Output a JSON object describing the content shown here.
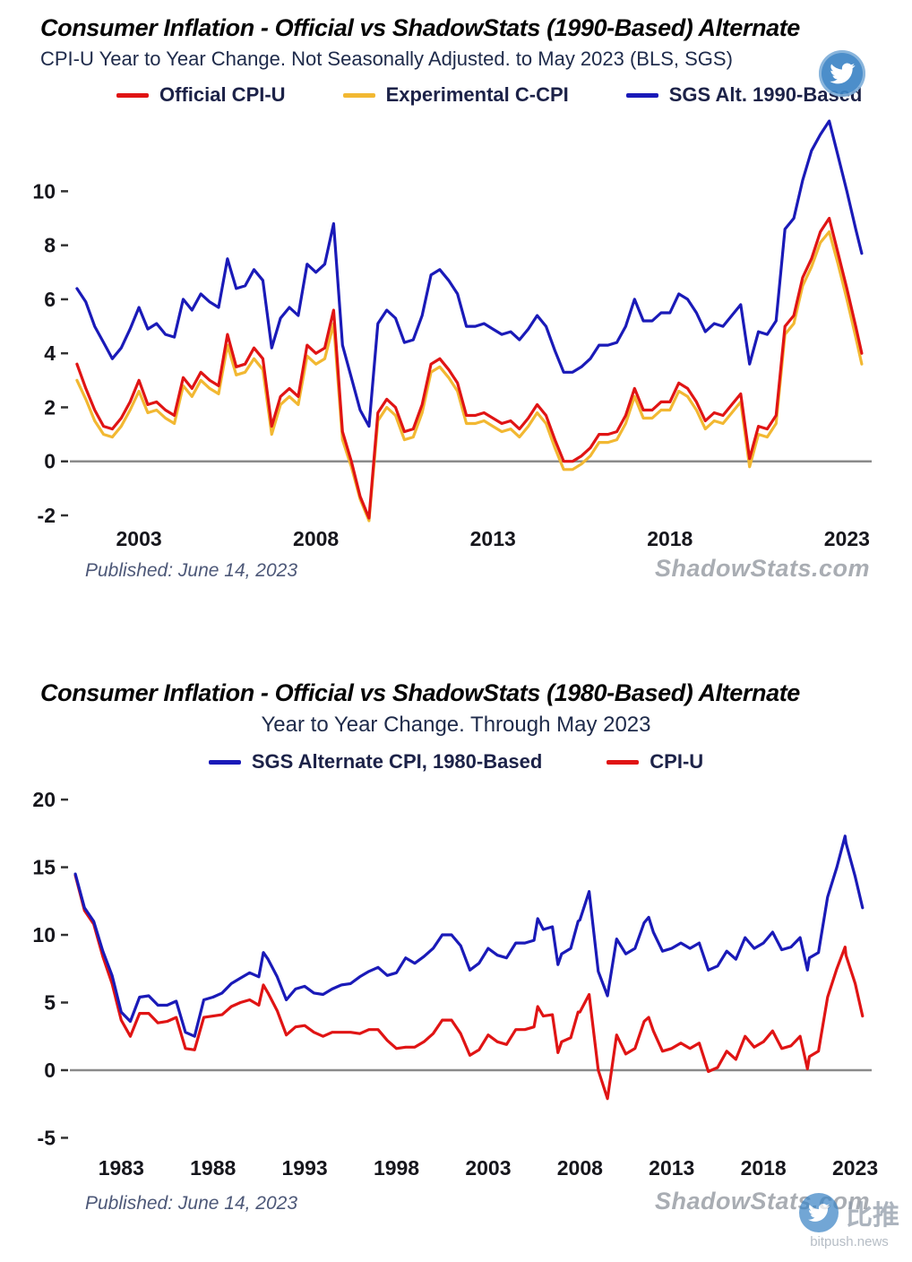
{
  "page": {
    "bitpush": {
      "name": "比推",
      "domain": "bitpush.news"
    }
  },
  "chart_data": [
    {
      "type": "line",
      "title": "Consumer Inflation - Official vs ShadowStats (1990-Based) Alternate",
      "subtitle": "CPI-U Year to Year Change. Not Seasonally Adjusted. to May 2023  (BLS, SGS)",
      "published": "Published: June 14, 2023",
      "watermark": "ShadowStats.com",
      "xlabel": "",
      "ylabel": "",
      "grid": false,
      "legend_position": "top",
      "xlim": [
        2001.1,
        2023.7
      ],
      "ylim": [
        -2,
        12.8
      ],
      "yticks": [
        -2,
        0,
        2,
        4,
        6,
        8,
        10
      ],
      "xticks": [
        2003,
        2008,
        2013,
        2018,
        2023
      ],
      "x": [
        2001.25,
        2001.5,
        2001.75,
        2002,
        2002.25,
        2002.5,
        2002.75,
        2003,
        2003.25,
        2003.5,
        2003.75,
        2004,
        2004.25,
        2004.5,
        2004.75,
        2005,
        2005.25,
        2005.5,
        2005.75,
        2006,
        2006.25,
        2006.5,
        2006.75,
        2007,
        2007.25,
        2007.5,
        2007.75,
        2008,
        2008.25,
        2008.5,
        2008.75,
        2009,
        2009.25,
        2009.5,
        2009.75,
        2010,
        2010.25,
        2010.5,
        2010.75,
        2011,
        2011.25,
        2011.5,
        2011.75,
        2012,
        2012.25,
        2012.5,
        2012.75,
        2013,
        2013.25,
        2013.5,
        2013.75,
        2014,
        2014.25,
        2014.5,
        2014.75,
        2015,
        2015.25,
        2015.5,
        2015.75,
        2016,
        2016.25,
        2016.5,
        2016.75,
        2017,
        2017.25,
        2017.5,
        2017.75,
        2018,
        2018.25,
        2018.5,
        2018.75,
        2019,
        2019.25,
        2019.5,
        2019.75,
        2020,
        2020.25,
        2020.5,
        2020.75,
        2021,
        2021.25,
        2021.5,
        2021.75,
        2022,
        2022.25,
        2022.5,
        2022.75,
        2023,
        2023.25,
        2023.42
      ],
      "series": [
        {
          "name": "Experimental C-CPI",
          "color": "#f2b832",
          "values": [
            3.0,
            2.3,
            1.5,
            1.0,
            0.9,
            1.3,
            1.9,
            2.6,
            1.8,
            1.9,
            1.6,
            1.4,
            2.8,
            2.4,
            3.0,
            2.7,
            2.5,
            4.3,
            3.2,
            3.3,
            3.8,
            3.4,
            1.0,
            2.1,
            2.4,
            2.1,
            3.9,
            3.6,
            3.8,
            5.1,
            0.8,
            -0.2,
            -1.4,
            -2.2,
            1.5,
            2.0,
            1.7,
            0.8,
            0.9,
            1.8,
            3.3,
            3.5,
            3.1,
            2.6,
            1.4,
            1.4,
            1.5,
            1.3,
            1.1,
            1.2,
            0.9,
            1.3,
            1.8,
            1.4,
            0.5,
            -0.3,
            -0.3,
            -0.1,
            0.2,
            0.7,
            0.7,
            0.8,
            1.4,
            2.4,
            1.6,
            1.6,
            1.9,
            1.9,
            2.6,
            2.4,
            1.9,
            1.2,
            1.5,
            1.4,
            1.8,
            2.2,
            -0.2,
            1.0,
            0.9,
            1.4,
            4.7,
            5.1,
            6.5,
            7.2,
            8.1,
            8.5,
            7.3,
            6.0,
            4.6,
            3.6
          ]
        },
        {
          "name": "Official CPI-U",
          "color": "#e01414",
          "values": [
            3.6,
            2.7,
            1.9,
            1.3,
            1.2,
            1.6,
            2.2,
            3.0,
            2.1,
            2.2,
            1.9,
            1.7,
            3.1,
            2.7,
            3.3,
            3.0,
            2.8,
            4.7,
            3.5,
            3.6,
            4.2,
            3.8,
            1.3,
            2.4,
            2.7,
            2.4,
            4.3,
            4.0,
            4.2,
            5.6,
            1.1,
            0.0,
            -1.3,
            -2.1,
            1.8,
            2.3,
            2.0,
            1.1,
            1.2,
            2.1,
            3.6,
            3.8,
            3.4,
            2.9,
            1.7,
            1.7,
            1.8,
            1.6,
            1.4,
            1.5,
            1.2,
            1.6,
            2.1,
            1.7,
            0.8,
            0.0,
            0.0,
            0.2,
            0.5,
            1.0,
            1.0,
            1.1,
            1.7,
            2.7,
            1.9,
            1.9,
            2.2,
            2.2,
            2.9,
            2.7,
            2.2,
            1.5,
            1.8,
            1.7,
            2.1,
            2.5,
            0.1,
            1.3,
            1.2,
            1.7,
            5.0,
            5.4,
            6.8,
            7.5,
            8.5,
            9.0,
            7.7,
            6.4,
            5.0,
            4.0
          ]
        },
        {
          "name": "SGS  Alt. 1990-Based",
          "color": "#1a1ab8",
          "values": [
            6.4,
            5.9,
            5.0,
            4.4,
            3.8,
            4.2,
            4.9,
            5.7,
            4.9,
            5.1,
            4.7,
            4.6,
            6.0,
            5.6,
            6.2,
            5.9,
            5.7,
            7.5,
            6.4,
            6.5,
            7.1,
            6.7,
            4.2,
            5.3,
            5.7,
            5.4,
            7.3,
            7.0,
            7.3,
            8.8,
            4.3,
            3.1,
            1.9,
            1.3,
            5.1,
            5.6,
            5.3,
            4.4,
            4.5,
            5.4,
            6.9,
            7.1,
            6.7,
            6.2,
            5.0,
            5.0,
            5.1,
            4.9,
            4.7,
            4.8,
            4.5,
            4.9,
            5.4,
            5.0,
            4.1,
            3.3,
            3.3,
            3.5,
            3.8,
            4.3,
            4.3,
            4.4,
            5.0,
            6.0,
            5.2,
            5.2,
            5.5,
            5.5,
            6.2,
            6.0,
            5.5,
            4.8,
            5.1,
            5.0,
            5.4,
            5.8,
            3.6,
            4.8,
            4.7,
            5.2,
            8.6,
            9.0,
            10.4,
            11.5,
            12.1,
            12.6,
            11.3,
            10.0,
            8.6,
            7.7
          ]
        }
      ]
    },
    {
      "type": "line",
      "title": "Consumer Inflation - Official vs ShadowStats (1980-Based) Alternate",
      "subtitle": "Year to Year Change. Through May 2023",
      "published": "Published: June 14, 2023",
      "watermark": "ShadowStats.com",
      "xlabel": "",
      "ylabel": "",
      "grid": false,
      "legend_position": "top",
      "xlim": [
        1980.3,
        2023.9
      ],
      "ylim": [
        -5.5,
        21
      ],
      "yticks": [
        -5,
        0,
        5,
        10,
        15,
        20
      ],
      "xticks": [
        1983,
        1988,
        1993,
        1998,
        2003,
        2008,
        2013,
        2018,
        2023
      ],
      "x": [
        1980.5,
        1981,
        1981.5,
        1982,
        1982.5,
        1983,
        1983.5,
        1984,
        1984.5,
        1985,
        1985.5,
        1986,
        1986.5,
        1987,
        1987.5,
        1988,
        1988.5,
        1989,
        1989.5,
        1990,
        1990.5,
        1990.75,
        1991,
        1991.5,
        1992,
        1992.5,
        1993,
        1993.5,
        1994,
        1994.5,
        1995,
        1995.5,
        1996,
        1996.5,
        1997,
        1997.5,
        1998,
        1998.5,
        1999,
        1999.5,
        2000,
        2000.5,
        2001,
        2001.5,
        2002,
        2002.5,
        2003,
        2003.5,
        2004,
        2004.5,
        2005,
        2005.5,
        2005.7,
        2006,
        2006.5,
        2006.8,
        2007,
        2007.5,
        2007.9,
        2008,
        2008.5,
        2009,
        2009.5,
        2010,
        2010.5,
        2011,
        2011.5,
        2011.75,
        2012,
        2012.5,
        2013,
        2013.5,
        2014,
        2014.5,
        2015,
        2015.5,
        2016,
        2016.5,
        2017,
        2017.5,
        2018,
        2018.5,
        2019,
        2019.5,
        2020,
        2020.4,
        2020.5,
        2021,
        2021.5,
        2022,
        2022.45,
        2022.5,
        2023,
        2023.4
      ],
      "series": [
        {
          "name": "CPI-U",
          "color": "#e01414",
          "values": [
            14.4,
            11.8,
            10.8,
            8.4,
            6.4,
            3.7,
            2.5,
            4.2,
            4.2,
            3.5,
            3.6,
            3.9,
            1.6,
            1.5,
            3.9,
            4.0,
            4.1,
            4.7,
            5.0,
            5.2,
            4.8,
            6.3,
            5.7,
            4.4,
            2.6,
            3.2,
            3.3,
            2.8,
            2.5,
            2.8,
            2.8,
            2.8,
            2.7,
            3.0,
            3.0,
            2.2,
            1.6,
            1.7,
            1.7,
            2.1,
            2.7,
            3.7,
            3.7,
            2.7,
            1.1,
            1.5,
            2.6,
            2.1,
            1.9,
            3.0,
            3.0,
            3.2,
            4.7,
            4.0,
            4.1,
            1.3,
            2.1,
            2.4,
            4.3,
            4.3,
            5.6,
            0.0,
            -2.1,
            2.6,
            1.2,
            1.6,
            3.6,
            3.9,
            2.9,
            1.4,
            1.6,
            2.0,
            1.6,
            2.0,
            -0.1,
            0.2,
            1.4,
            0.8,
            2.5,
            1.7,
            2.1,
            2.9,
            1.6,
            1.8,
            2.5,
            0.1,
            1.0,
            1.4,
            5.4,
            7.5,
            9.1,
            8.5,
            6.4,
            4.0
          ]
        },
        {
          "name": "SGS Alternate CPI, 1980-Based",
          "color": "#1a1ab8",
          "values": [
            14.5,
            12.0,
            11.0,
            8.8,
            7.0,
            4.3,
            3.6,
            5.4,
            5.5,
            4.8,
            4.8,
            5.1,
            2.8,
            2.5,
            5.2,
            5.4,
            5.7,
            6.4,
            6.8,
            7.2,
            6.9,
            8.7,
            8.2,
            6.9,
            5.2,
            6.0,
            6.2,
            5.7,
            5.6,
            6.0,
            6.3,
            6.4,
            6.9,
            7.3,
            7.6,
            7.0,
            7.2,
            8.3,
            7.9,
            8.4,
            9.0,
            10.0,
            10.0,
            9.2,
            7.4,
            7.9,
            9.0,
            8.5,
            8.3,
            9.4,
            9.4,
            9.6,
            11.2,
            10.4,
            10.6,
            7.8,
            8.6,
            9.0,
            11.0,
            11.1,
            13.2,
            7.3,
            5.5,
            9.7,
            8.6,
            9.0,
            10.9,
            11.3,
            10.2,
            8.8,
            9.0,
            9.4,
            9.0,
            9.4,
            7.4,
            7.7,
            8.8,
            8.2,
            9.8,
            9.0,
            9.4,
            10.2,
            8.9,
            9.1,
            9.8,
            7.4,
            8.3,
            8.7,
            12.8,
            15.0,
            17.3,
            16.8,
            14.3,
            12.0
          ]
        }
      ]
    }
  ]
}
